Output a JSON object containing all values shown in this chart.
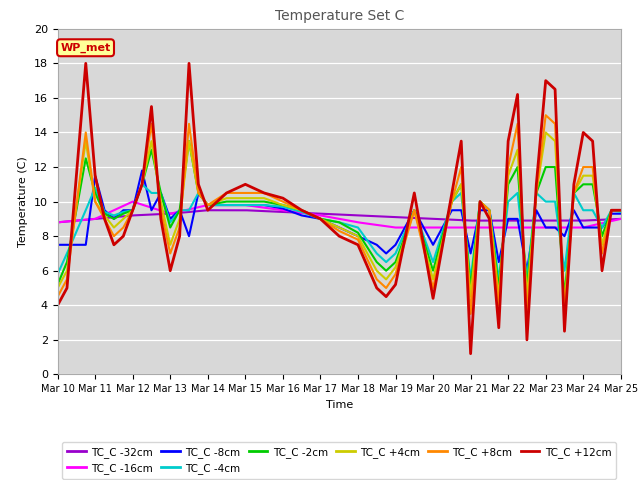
{
  "title": "Temperature Set C",
  "xlabel": "Time",
  "ylabel": "Temperature (C)",
  "ylim": [
    0,
    20
  ],
  "xlim": [
    0,
    15
  ],
  "fig_bg": "#ffffff",
  "plot_bg": "#d8d8d8",
  "series": {
    "TC_C -32cm": {
      "color": "#9900cc",
      "lw": 1.5
    },
    "TC_C -16cm": {
      "color": "#ff00ff",
      "lw": 1.5
    },
    "TC_C -8cm": {
      "color": "#0000ff",
      "lw": 1.5
    },
    "TC_C -4cm": {
      "color": "#00cccc",
      "lw": 1.5
    },
    "TC_C -2cm": {
      "color": "#00cc00",
      "lw": 1.5
    },
    "TC_C +4cm": {
      "color": "#cccc00",
      "lw": 1.5
    },
    "TC_C +8cm": {
      "color": "#ff8800",
      "lw": 1.5
    },
    "TC_C +12cm": {
      "color": "#cc0000",
      "lw": 2.0
    }
  },
  "xtick_labels": [
    "Mar 10",
    "Mar 11",
    "Mar 12",
    "Mar 13",
    "Mar 14",
    "Mar 15",
    "Mar 16",
    "Mar 17",
    "Mar 18",
    "Mar 19",
    "Mar 20",
    "Mar 21",
    "Mar 22",
    "Mar 23",
    "Mar 24",
    "Mar 25"
  ],
  "xtick_positions": [
    0,
    1,
    2,
    3,
    4,
    5,
    6,
    7,
    8,
    9,
    10,
    11,
    12,
    13,
    14,
    15
  ],
  "ytick_labels": [
    "0",
    "2",
    "4",
    "6",
    "8",
    "10",
    "12",
    "14",
    "16",
    "18",
    "20"
  ],
  "ytick_positions": [
    0,
    2,
    4,
    6,
    8,
    10,
    12,
    14,
    16,
    18,
    20
  ],
  "legend_label": "WP_met",
  "legend_bg": "#ffff99",
  "legend_edge": "#cc0000",
  "legend_order": [
    "TC_C -32cm",
    "TC_C -16cm",
    "TC_C -8cm",
    "TC_C -4cm",
    "TC_C -2cm",
    "TC_C +4cm",
    "TC_C +8cm",
    "TC_C +12cm"
  ]
}
